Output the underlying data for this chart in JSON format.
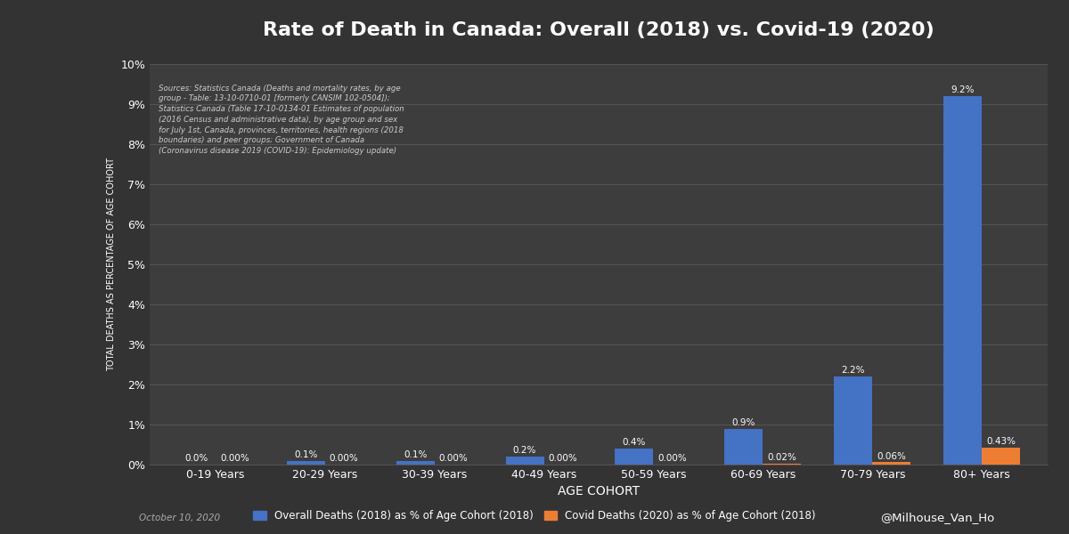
{
  "title": "Rate of Death in Canada: Overall (2018) vs. Covid-19 (2020)",
  "categories": [
    "0-19 Years",
    "20-29 Years",
    "30-39 Years",
    "40-49 Years",
    "50-59 Years",
    "60-69 Years",
    "70-79 Years",
    "80+ Years"
  ],
  "overall_values": [
    0.0,
    0.1,
    0.1,
    0.2,
    0.4,
    0.9,
    2.2,
    9.2
  ],
  "covid_values": [
    0.0,
    0.0,
    0.0,
    0.0,
    0.0,
    0.02,
    0.06,
    0.43
  ],
  "overall_labels": [
    "0.0%",
    "0.1%",
    "0.1%",
    "0.2%",
    "0.4%",
    "0.9%",
    "2.2%",
    "9.2%"
  ],
  "covid_labels": [
    "0.00%",
    "0.00%",
    "0.00%",
    "0.00%",
    "0.00%",
    "0.02%",
    "0.06%",
    "0.43%"
  ],
  "overall_color": "#4472C4",
  "covid_color": "#ED7D31",
  "background_color": "#333333",
  "plot_background_color": "#3D3D3D",
  "grid_color": "#555555",
  "text_color": "#FFFFFF",
  "title_fontsize": 16,
  "ylabel": "TOTAL DEATHS AS PERCENTAGE OF AGE COHORT",
  "xlabel": "AGE COHORT",
  "ylim": [
    0,
    10
  ],
  "yticks": [
    0,
    1,
    2,
    3,
    4,
    5,
    6,
    7,
    8,
    9,
    10
  ],
  "ytick_labels": [
    "0%",
    "1%",
    "2%",
    "3%",
    "4%",
    "5%",
    "6%",
    "7%",
    "8%",
    "9%",
    "10%"
  ],
  "legend_overall": "Overall Deaths (2018) as % of Age Cohort (2018)",
  "legend_covid": "Covid Deaths (2020) as % of Age Cohort (2018)",
  "source_text": "Sources: Statistics Canada (Deaths and mortality rates, by age\ngroup - Table: 13-10-0710-01 [formerly CANSIM 102-0504]);\nStatistics Canada (Table 17-10-0134-01 Estimates of population\n(2016 Census and administrative data), by age group and sex\nfor July 1st, Canada, provinces, territories, health regions (2018\nboundaries) and peer groups; Government of Canada\n(Coronavirus disease 2019 (COVID-19): Epidemiology update)",
  "date_text": "October 10, 2020",
  "watermark_text": "@Milhouse_Van_Ho",
  "bar_width": 0.35
}
